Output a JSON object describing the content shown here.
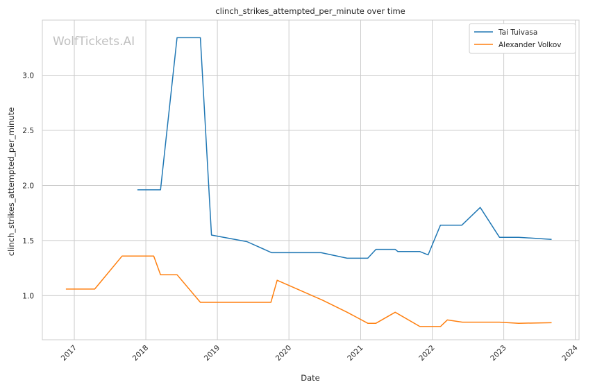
{
  "watermark": "WolfTickets.AI",
  "colors": {
    "series_1": "#1f77b4",
    "series_2": "#ff7f0e",
    "grid": "#cccccc",
    "axes": "#cccccc"
  },
  "chart_data": {
    "type": "line",
    "title": "clinch_strikes_attempted_per_minute over time",
    "xlabel": "Date",
    "ylabel": "clinch_strikes_attempted_per_minute",
    "xlim": [
      "2016-07-22",
      "2024-01-20"
    ],
    "ylim": [
      0.6,
      3.5
    ],
    "x_ticks": [
      "2017-01-01",
      "2018-01-01",
      "2019-01-01",
      "2020-01-01",
      "2021-01-01",
      "2022-01-01",
      "2023-01-01",
      "2024-01-01"
    ],
    "x_tick_labels": [
      "2017",
      "2018",
      "2019",
      "2020",
      "2021",
      "2022",
      "2023",
      "2024"
    ],
    "y_ticks": [
      1.0,
      1.5,
      2.0,
      2.5,
      3.0
    ],
    "y_tick_labels": [
      "1.0",
      "1.5",
      "2.0",
      "2.5",
      "3.0"
    ],
    "grid": true,
    "legend_position": "top-right",
    "series": [
      {
        "name": "Tai Tuivasa",
        "points": [
          [
            "2017-11-19",
            1.96
          ],
          [
            "2018-03-17",
            1.96
          ],
          [
            "2018-06-09",
            3.34
          ],
          [
            "2018-10-06",
            3.34
          ],
          [
            "2018-12-02",
            1.55
          ],
          [
            "2019-06-01",
            1.49
          ],
          [
            "2019-10-05",
            1.39
          ],
          [
            "2020-06-13",
            1.39
          ],
          [
            "2020-10-24",
            1.34
          ],
          [
            "2021-02-06",
            1.34
          ],
          [
            "2021-03-20",
            1.42
          ],
          [
            "2021-06-26",
            1.42
          ],
          [
            "2021-07-10",
            1.4
          ],
          [
            "2021-10-30",
            1.4
          ],
          [
            "2021-12-11",
            1.37
          ],
          [
            "2022-02-12",
            1.64
          ],
          [
            "2022-06-01",
            1.64
          ],
          [
            "2022-09-03",
            1.8
          ],
          [
            "2022-12-10",
            1.53
          ],
          [
            "2023-03-18",
            1.53
          ],
          [
            "2023-09-02",
            1.51
          ]
        ]
      },
      {
        "name": "Alexander Volkov",
        "points": [
          [
            "2016-11-19",
            1.06
          ],
          [
            "2017-04-15",
            1.06
          ],
          [
            "2017-09-02",
            1.36
          ],
          [
            "2018-02-10",
            1.36
          ],
          [
            "2018-03-17",
            1.19
          ],
          [
            "2018-06-09",
            1.19
          ],
          [
            "2018-10-06",
            0.94
          ],
          [
            "2019-10-01",
            0.94
          ],
          [
            "2019-11-02",
            1.14
          ],
          [
            "2020-06-20",
            0.96
          ],
          [
            "2020-10-24",
            0.85
          ],
          [
            "2021-02-06",
            0.75
          ],
          [
            "2021-03-20",
            0.75
          ],
          [
            "2021-06-26",
            0.85
          ],
          [
            "2021-10-30",
            0.72
          ],
          [
            "2022-02-12",
            0.72
          ],
          [
            "2022-03-19",
            0.78
          ],
          [
            "2022-06-04",
            0.76
          ],
          [
            "2022-12-10",
            0.76
          ],
          [
            "2023-03-18",
            0.75
          ],
          [
            "2023-09-02",
            0.755
          ]
        ]
      }
    ]
  }
}
